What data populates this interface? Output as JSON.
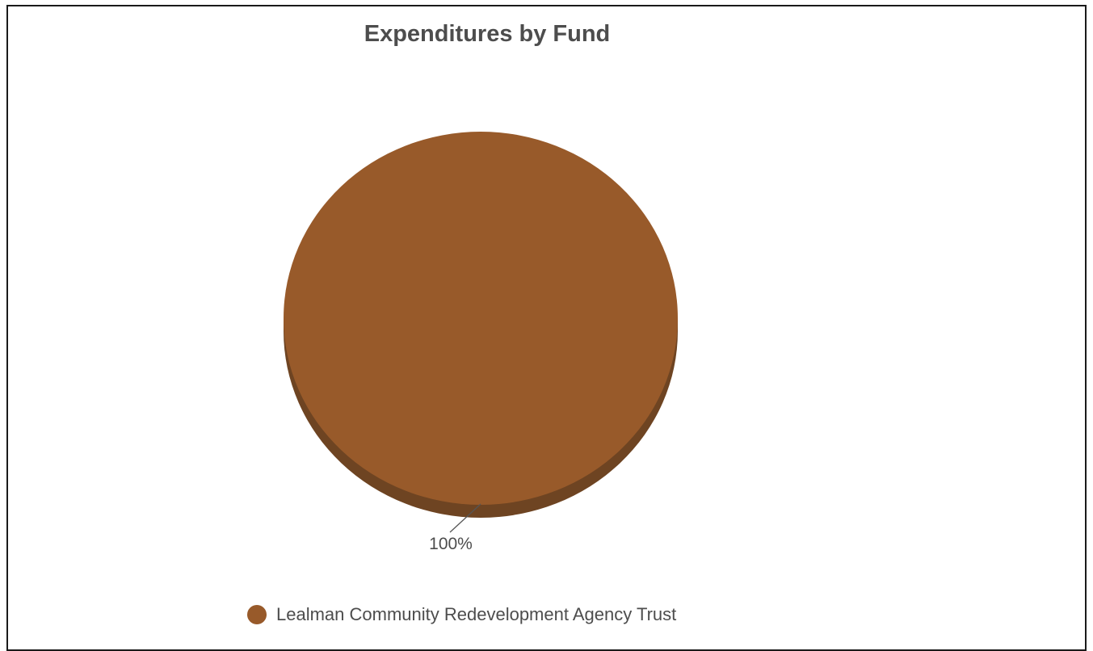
{
  "chart_data": {
    "type": "pie",
    "title": "Expenditures by Fund",
    "slices": [
      {
        "label": "Lealman Community Redevelopment Agency Trust",
        "value": 100,
        "percent_label": "100%",
        "color": "#985a2a"
      }
    ],
    "style": "3d",
    "legend_position": "bottom"
  },
  "colors": {
    "slice_side": "#6e4422",
    "title_text": "#4d4d4d",
    "frame_border": "#1a1a1a"
  }
}
